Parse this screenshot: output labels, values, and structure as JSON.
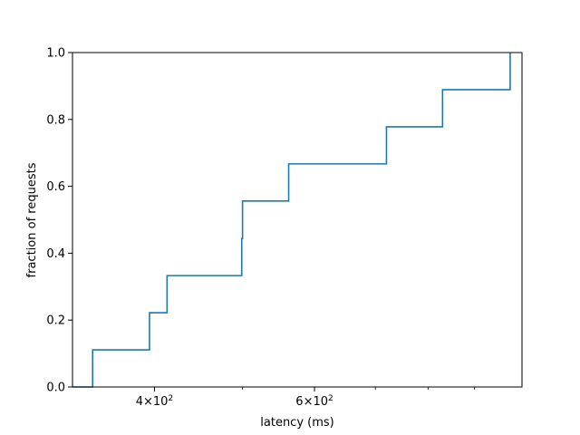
{
  "chart_data": {
    "type": "line",
    "title": "",
    "xlabel": "latency (ms)",
    "ylabel": "fraction of requests",
    "x_scale": "log",
    "xlim": [
      325,
      1015
    ],
    "ylim": [
      0,
      1
    ],
    "grid": false,
    "legend": "none",
    "colors": {
      "series": "#1f77b4",
      "axes": "#000000",
      "background": "#ffffff"
    },
    "x_major_ticks": [
      {
        "value": 400,
        "label_base": "4×10",
        "label_exp": "2"
      },
      {
        "value": 600,
        "label_base": "6×10",
        "label_exp": "2"
      }
    ],
    "x_minor_ticks": [
      500,
      700,
      800,
      900
    ],
    "y_ticks": [
      {
        "value": 0.0,
        "label": "0.0"
      },
      {
        "value": 0.2,
        "label": "0.2"
      },
      {
        "value": 0.4,
        "label": "0.4"
      },
      {
        "value": 0.6,
        "label": "0.6"
      },
      {
        "value": 0.8,
        "label": "0.8"
      },
      {
        "value": 1.0,
        "label": "1.0"
      }
    ],
    "series": [
      {
        "drawstyle": "steps-post",
        "x": [
          325,
          342,
          395,
          413,
          499,
          500,
          562,
          720,
          830,
          985
        ],
        "y": [
          0.0,
          0.111,
          0.222,
          0.333,
          0.444,
          0.556,
          0.667,
          0.778,
          0.889,
          1.0
        ]
      }
    ]
  }
}
